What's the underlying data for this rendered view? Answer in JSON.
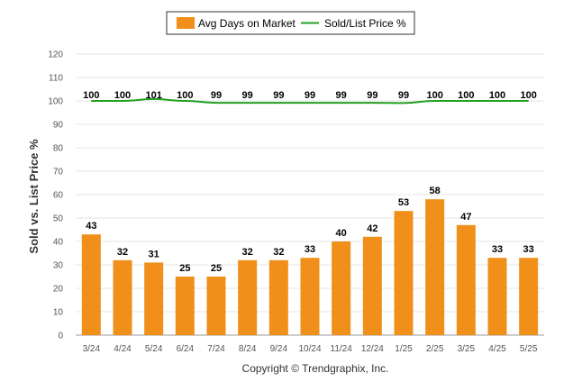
{
  "chart_data": {
    "type": "bar",
    "categories": [
      "3/24",
      "4/24",
      "5/24",
      "6/24",
      "7/24",
      "8/24",
      "9/24",
      "10/24",
      "11/24",
      "12/24",
      "1/25",
      "2/25",
      "3/25",
      "4/25",
      "5/25"
    ],
    "series": [
      {
        "name": "Avg Days on Market",
        "type": "bar",
        "color": "#f0901a",
        "values": [
          43,
          32,
          31,
          25,
          25,
          32,
          32,
          33,
          40,
          42,
          53,
          58,
          47,
          33,
          33
        ],
        "labels": [
          "43",
          "32",
          "31",
          "25",
          "25",
          "32",
          "32",
          "33",
          "40",
          "42",
          "53",
          "58",
          "47",
          "33",
          "33"
        ]
      },
      {
        "name": "Sold/List Price %",
        "type": "line",
        "color": "#22a022",
        "values": [
          100,
          100,
          101,
          100,
          99,
          99,
          99,
          99,
          99,
          99,
          99,
          100,
          100,
          100,
          100
        ],
        "plotted": [
          100,
          100,
          100.8,
          100,
          99.2,
          99.2,
          99.2,
          99.2,
          99.2,
          99.2,
          99.1,
          100,
          100,
          100,
          100
        ],
        "labels": [
          "100",
          "100",
          "101",
          "100",
          "99",
          "99",
          "99",
          "99",
          "99",
          "99",
          "99",
          "100",
          "100",
          "100",
          "100"
        ]
      }
    ],
    "ylabel": "Sold vs. List Price %",
    "ylim": [
      0,
      120
    ],
    "yticks": [
      "0",
      "10",
      "20",
      "30",
      "40",
      "50",
      "60",
      "70",
      "80",
      "90",
      "100",
      "110",
      "120"
    ],
    "grid": true,
    "legend": "top-center"
  },
  "footer": {
    "copyright": "Copyright © Trendgraphix, Inc."
  }
}
